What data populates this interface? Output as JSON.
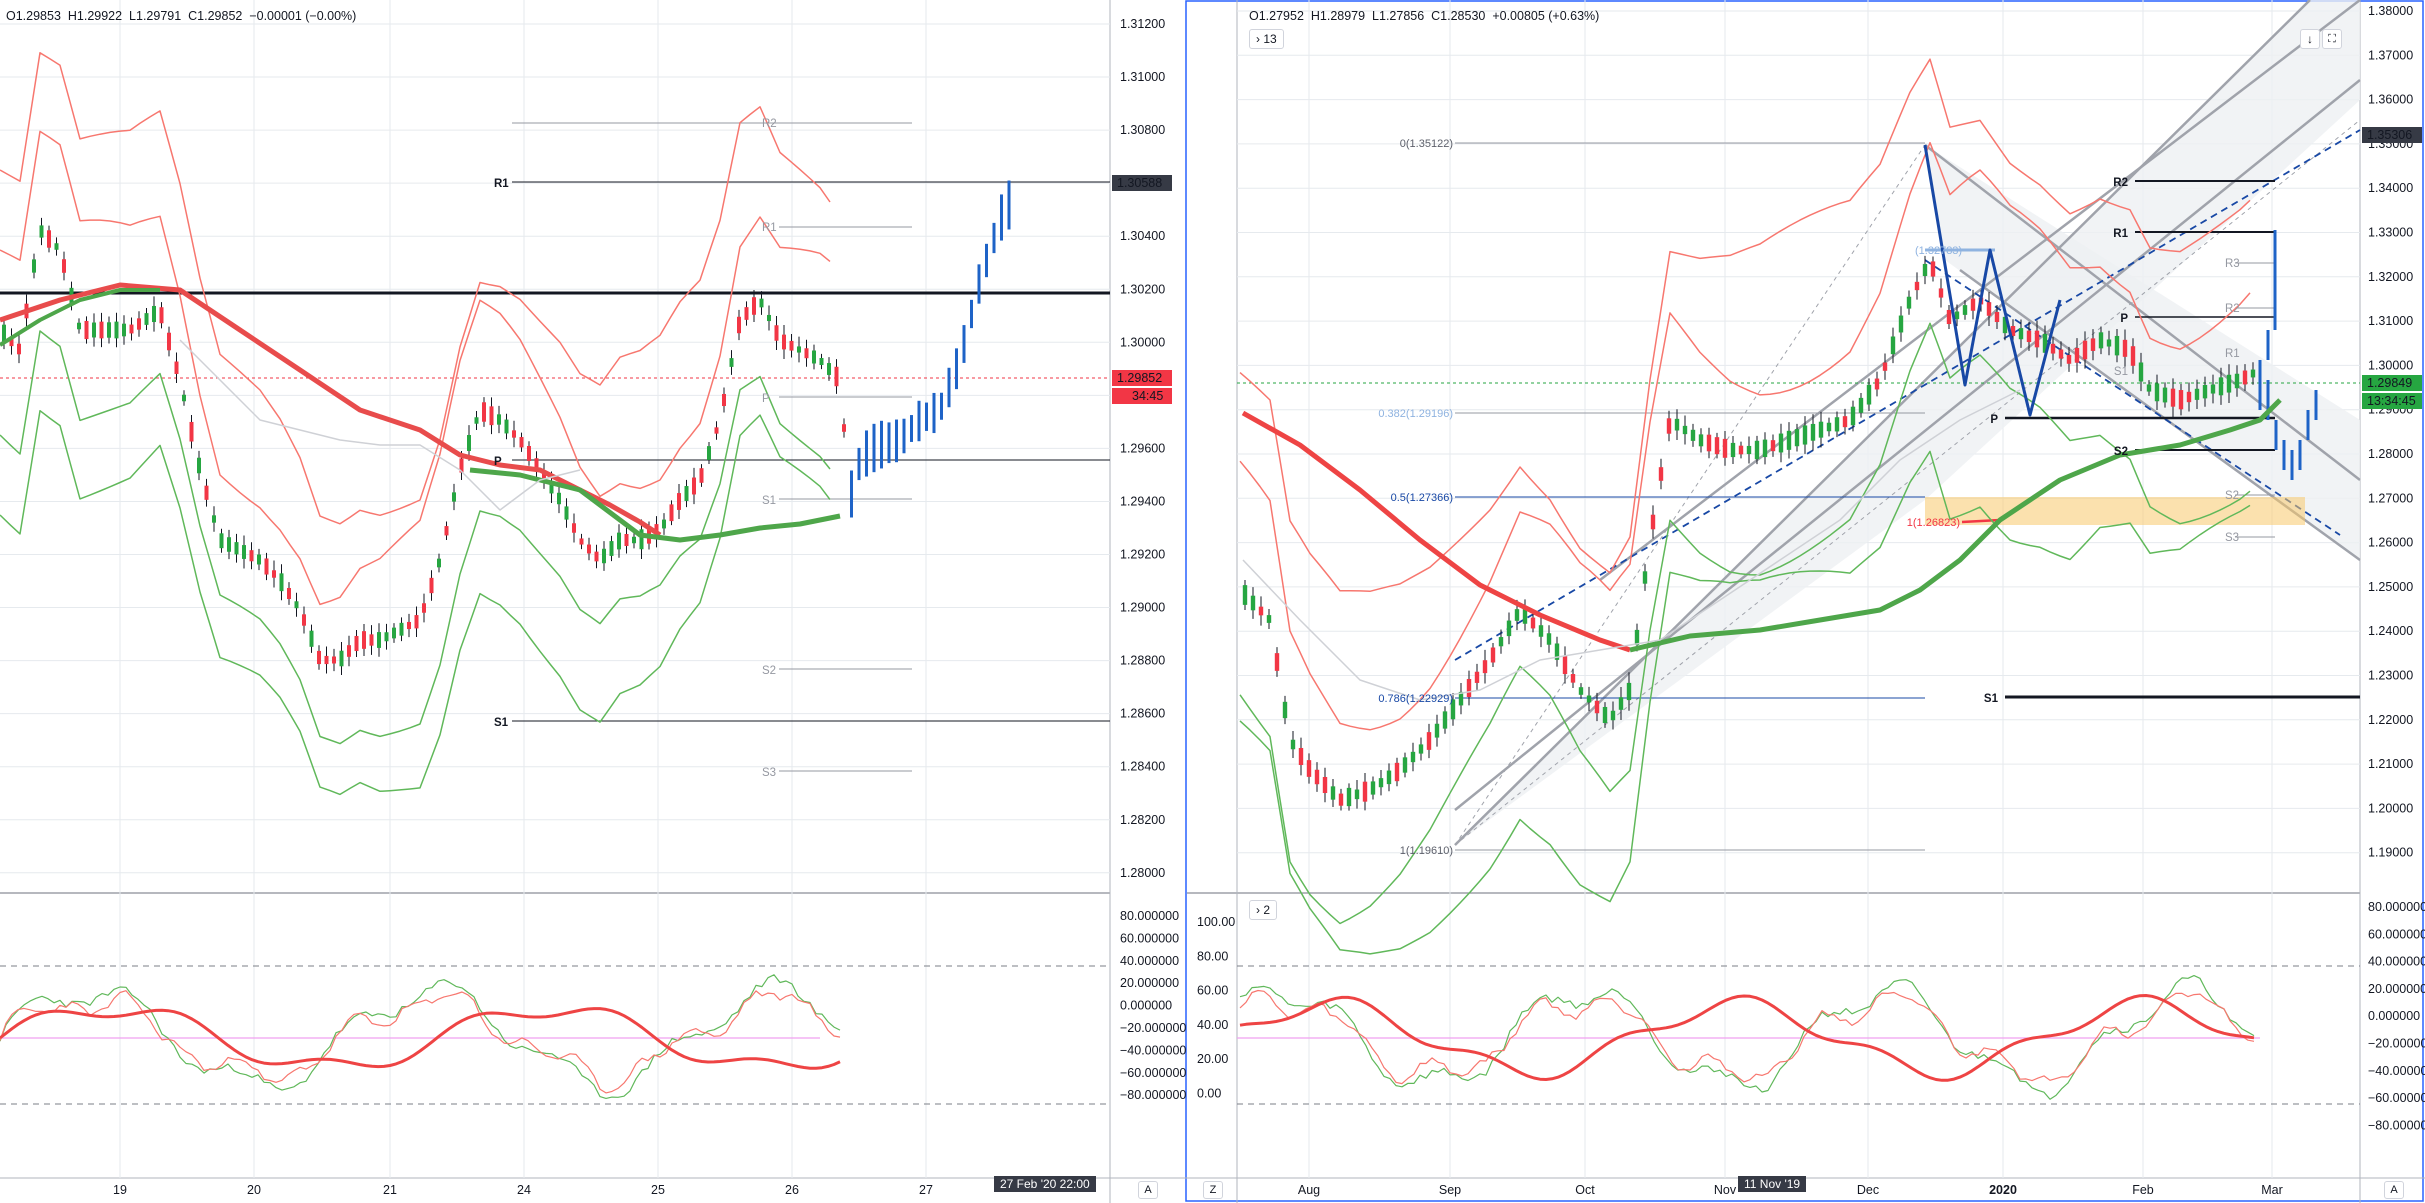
{
  "colors": {
    "up": "#26a641",
    "down": "#f23645",
    "bull_extra": "#1e63c7",
    "bb": "#f7776f",
    "bb_low": "#60b85a",
    "ma": "#ee4444",
    "ma_green": "#4ea64a",
    "grid": "#e6eaee",
    "accent": "#2196f3",
    "fib_blue": "#1848a5"
  },
  "left": {
    "ohlc": {
      "o": "O1.29853",
      "h": "H1.29922",
      "l": "L1.29791",
      "c": "C1.29852",
      "chg": "−0.00001 (−0.00%)"
    },
    "price_ticks": [
      "1.31200",
      "1.31000",
      "1.30800",
      "1.30600",
      "1.30400",
      "1.30200",
      "1.30000",
      "1.29800",
      "1.29600",
      "1.29400",
      "1.29200",
      "1.29000",
      "1.28800",
      "1.28600",
      "1.28400",
      "1.28200",
      "1.28000"
    ],
    "time_ticks": [
      "19",
      "20",
      "21",
      "24",
      "25",
      "26",
      "27"
    ],
    "price_marker_1": "1.30588",
    "price_marker_2": "1.29852",
    "countdown": "34:45",
    "pivots": {
      "R2": "R2",
      "R1_main": "R1",
      "R1_small": "R1",
      "P": "P",
      "P_small": "P",
      "S1_small": "S1",
      "S2": "S2",
      "S1_main": "S1",
      "S3": "S3"
    },
    "date_label": "27 Feb '20   22:00",
    "auto_label": "A",
    "osc_ticks": [
      "80.000000",
      "60.000000",
      "40.000000",
      "20.000000",
      "0.000000",
      "−20.000000",
      "−40.000000",
      "−60.000000",
      "−80.000000"
    ]
  },
  "right": {
    "ohlc": {
      "o": "O1.27952",
      "h": "H1.28979",
      "l": "L1.27856",
      "c": "C1.28530",
      "chg": "+0.00805 (+0.63%)"
    },
    "collapse_label": "13",
    "osc_collapse_label": "2",
    "price_ticks": [
      "1.38000",
      "1.37000",
      "1.36000",
      "1.35000",
      "1.34000",
      "1.33000",
      "1.32000",
      "1.31000",
      "1.30000",
      "1.29000",
      "1.28000",
      "1.27000",
      "1.26000",
      "1.25000",
      "1.24000",
      "1.23000",
      "1.22000",
      "1.21000",
      "1.20000",
      "1.19000"
    ],
    "time_ticks": [
      "Aug",
      "Sep",
      "Oct",
      "Nov",
      "Dec",
      "2020",
      "Feb",
      "Mar"
    ],
    "date_label": "11 Nov '19",
    "price_marker_1": "1.35306",
    "price_marker_2": "1.29849",
    "countdown": "13:34:45",
    "fib": {
      "f0": "0(1.35122)",
      "f382": "0.382(1.29196)",
      "f5": "0.5(1.27366)",
      "f786": "0.786(1.22929)",
      "f1": "1(1.19610)",
      "f1_red": "1(1.26823)",
      "f_light": "(1.32783)"
    },
    "pivots": {
      "R2": "R2",
      "R1": "R1",
      "P": "P",
      "S2": "S2",
      "S1": "S1",
      "R3_s": "R3",
      "R2_s": "R2",
      "R1_s": "R1",
      "P_s": "P",
      "S1_s": "S1",
      "S2_s": "S2",
      "S3_s": "S3"
    },
    "osc_left_ticks": [
      "100.00",
      "80.00",
      "60.00",
      "40.00",
      "20.00",
      "0.00"
    ],
    "osc_right_ticks": [
      "80.000000",
      "60.000000",
      "40.000000",
      "20.000000",
      "0.000000",
      "−20.000000",
      "−40.000000",
      "−60.000000",
      "−80.000000"
    ],
    "z_label": "Z",
    "a_label": "A"
  }
}
